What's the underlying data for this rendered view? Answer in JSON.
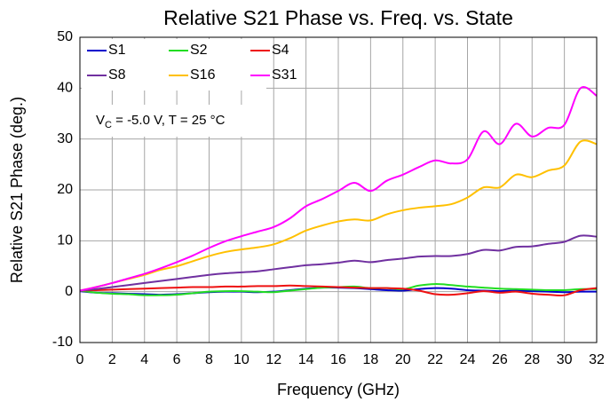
{
  "chart_data": {
    "type": "line",
    "title": "Relative S21 Phase vs. Freq. vs. State",
    "xlabel": "Frequency (GHz)",
    "ylabel": "Relative S21 Phase (deg.)",
    "annotation": [
      "V",
      "C",
      " = -5.0 V, T = 25 °C"
    ],
    "x": [
      0,
      1,
      2,
      3,
      4,
      5,
      6,
      7,
      8,
      9,
      10,
      11,
      12,
      13,
      14,
      15,
      16,
      17,
      18,
      19,
      20,
      21,
      22,
      23,
      24,
      25,
      26,
      27,
      28,
      29,
      30,
      31,
      32
    ],
    "series": [
      {
        "name": "S1",
        "color": "#0000cc",
        "values": [
          0.1,
          -0.2,
          -0.3,
          -0.4,
          -0.5,
          -0.6,
          -0.5,
          -0.3,
          -0.1,
          0.0,
          0.0,
          -0.1,
          0.0,
          0.3,
          0.6,
          0.8,
          0.8,
          0.7,
          0.5,
          0.3,
          0.2,
          0.5,
          0.7,
          0.6,
          0.3,
          0.2,
          0.1,
          0.2,
          0.1,
          0.0,
          -0.1,
          0.0,
          0.0
        ]
      },
      {
        "name": "S2",
        "color": "#22dd22",
        "values": [
          0.2,
          -0.2,
          -0.4,
          -0.5,
          -0.7,
          -0.7,
          -0.6,
          -0.3,
          0.0,
          0.1,
          0.1,
          0.0,
          -0.1,
          0.2,
          0.5,
          0.8,
          0.9,
          1.0,
          0.7,
          0.7,
          0.5,
          1.2,
          1.5,
          1.3,
          1.0,
          0.8,
          0.6,
          0.5,
          0.4,
          0.3,
          0.3,
          0.5,
          0.5
        ]
      },
      {
        "name": "S4",
        "color": "#ee1111",
        "values": [
          0.2,
          0.3,
          0.4,
          0.5,
          0.6,
          0.7,
          0.8,
          0.9,
          0.9,
          1.0,
          1.0,
          1.1,
          1.1,
          1.2,
          1.1,
          1.0,
          0.9,
          0.8,
          0.7,
          0.7,
          0.6,
          0.2,
          -0.5,
          -0.6,
          -0.3,
          0.1,
          -0.2,
          0.0,
          -0.4,
          -0.6,
          -0.7,
          0.3,
          0.7
        ]
      },
      {
        "name": "S8",
        "color": "#7030a0",
        "values": [
          0.2,
          0.5,
          0.9,
          1.3,
          1.7,
          2.1,
          2.5,
          2.9,
          3.3,
          3.6,
          3.8,
          4.0,
          4.4,
          4.8,
          5.2,
          5.4,
          5.7,
          6.1,
          5.8,
          6.2,
          6.5,
          6.9,
          7.0,
          7.0,
          7.4,
          8.2,
          8.1,
          8.8,
          8.9,
          9.4,
          9.8,
          11.0,
          10.8
        ]
      },
      {
        "name": "S16",
        "color": "#ffc000",
        "values": [
          0.2,
          0.9,
          1.7,
          2.5,
          3.3,
          4.3,
          5.0,
          6.0,
          7.0,
          7.8,
          8.3,
          8.7,
          9.3,
          10.5,
          12.0,
          13.0,
          13.8,
          14.2,
          14.0,
          15.2,
          16.0,
          16.5,
          16.8,
          17.2,
          18.5,
          20.5,
          20.5,
          23.0,
          22.5,
          23.8,
          24.8,
          29.5,
          29.0
        ]
      },
      {
        "name": "S31",
        "color": "#ff00ff",
        "values": [
          0.2,
          0.9,
          1.7,
          2.6,
          3.5,
          4.6,
          5.8,
          7.1,
          8.6,
          9.9,
          10.9,
          11.8,
          12.7,
          14.4,
          16.8,
          18.2,
          19.8,
          21.4,
          19.8,
          21.8,
          23.0,
          24.5,
          25.8,
          25.2,
          26.0,
          31.5,
          29.0,
          33.0,
          30.5,
          32.2,
          32.8,
          40.0,
          38.5
        ]
      }
    ],
    "xlim": [
      0,
      32
    ],
    "xticks": [
      0,
      2,
      4,
      6,
      8,
      10,
      12,
      14,
      16,
      18,
      20,
      22,
      24,
      26,
      28,
      30,
      32
    ],
    "ylim": [
      -10,
      50
    ],
    "yticks": [
      -10,
      0,
      10,
      20,
      30,
      40,
      50
    ],
    "grid": true
  }
}
